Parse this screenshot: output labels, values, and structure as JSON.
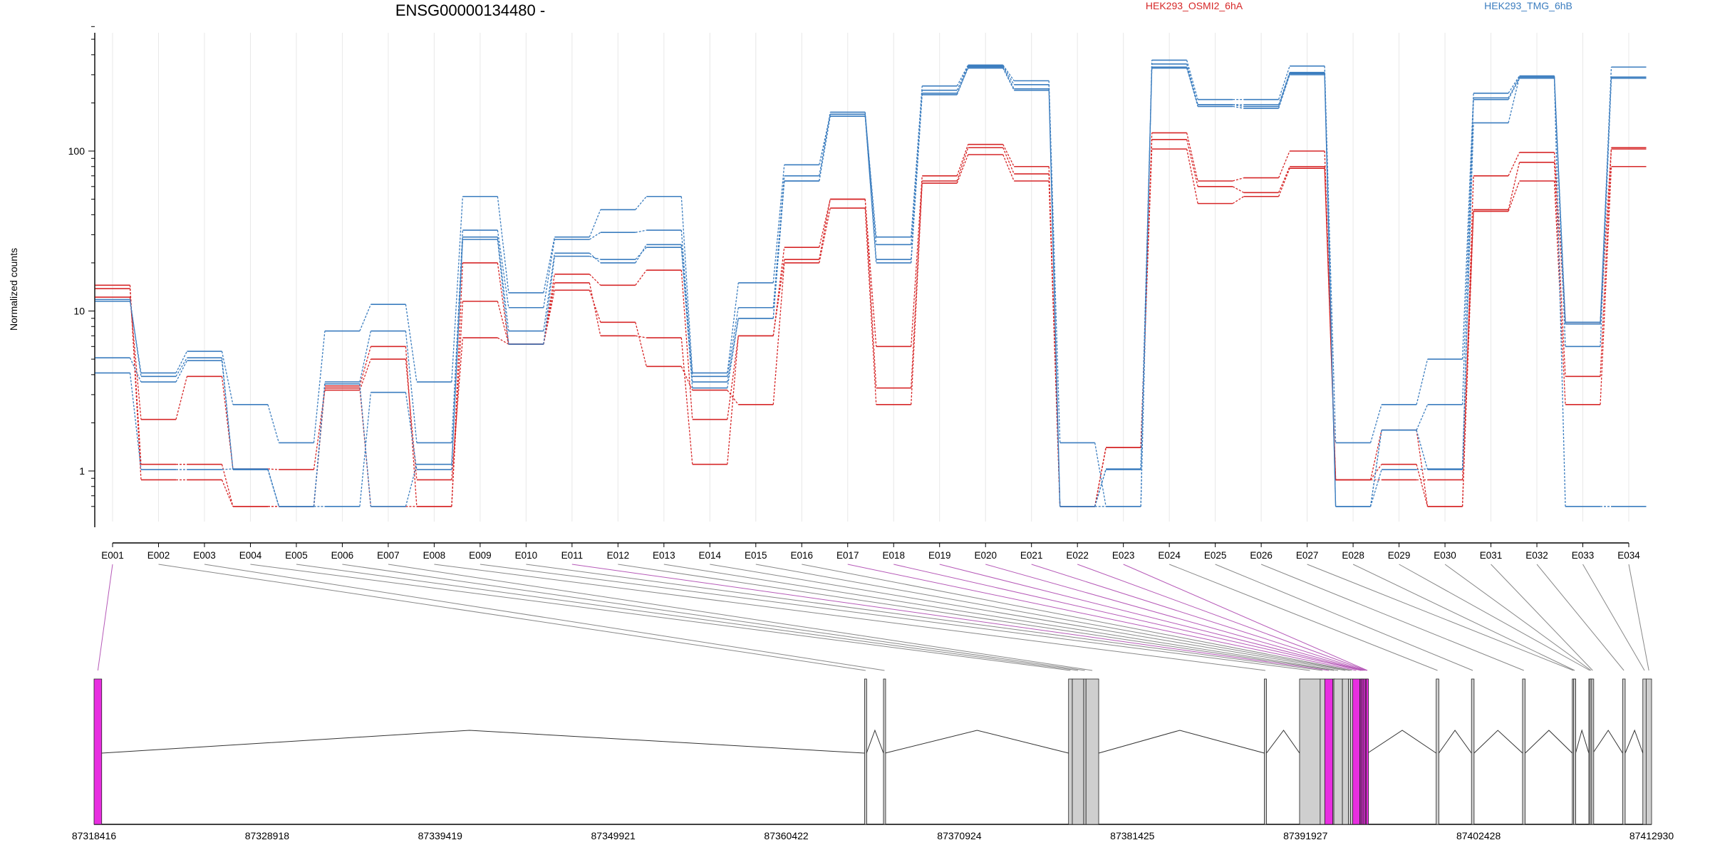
{
  "chart_data": {
    "type": "line",
    "title": "ENSG00000134480 -",
    "ylabel": "Normalized counts",
    "y_scale": "log",
    "y_ticks": [
      "1",
      "10",
      "100"
    ],
    "ylim": [
      0.55,
      600
    ],
    "grid": "vertical",
    "legend": [
      {
        "name": "HEK293_OSMI2_6hA",
        "color": "#d62728"
      },
      {
        "name": "HEK293_TMG_6hB",
        "color": "#3b7dbf"
      }
    ],
    "categories": [
      "E001",
      "E002",
      "E003",
      "E004",
      "E005",
      "E006",
      "E007",
      "E008",
      "E009",
      "E010",
      "E011",
      "E012",
      "E013",
      "E014",
      "E015",
      "E016",
      "E017",
      "E018",
      "E019",
      "E020",
      "E021",
      "E022",
      "E023",
      "E024",
      "E025",
      "E026",
      "E027",
      "E028",
      "E029",
      "E030",
      "E031",
      "E032",
      "E033",
      "E034"
    ],
    "series": [
      {
        "group": "HEK293_OSMI2_6hA",
        "color": "#d62728",
        "values": [
          14.5,
          0.88,
          0.88,
          0.6,
          0.6,
          3.3,
          0.6,
          0.6,
          20,
          6.2,
          17,
          14.5,
          18,
          2.1,
          7,
          25,
          50,
          6,
          70,
          110,
          80,
          0.6,
          1.4,
          130,
          65,
          68,
          100,
          0.88,
          1.1,
          0.6,
          70,
          98,
          8.5,
          105
        ]
      },
      {
        "group": "HEK293_OSMI2_6hA",
        "color": "#d62728",
        "values": [
          13.8,
          1.1,
          1.1,
          0.6,
          0.6,
          3.4,
          6,
          0.6,
          11.5,
          6.2,
          15,
          7,
          6.8,
          1.1,
          7,
          21,
          50,
          3.3,
          65,
          105,
          72,
          0.6,
          1.4,
          118,
          60,
          55,
          80,
          0.88,
          0.88,
          0.88,
          43,
          85,
          3.9,
          103
        ]
      },
      {
        "group": "HEK293_OSMI2_6hA",
        "color": "#d62728",
        "values": [
          12.2,
          2.1,
          3.9,
          1.03,
          1.02,
          3.2,
          5,
          0.88,
          6.8,
          6.2,
          13.5,
          8.5,
          4.5,
          3.2,
          2.6,
          20,
          44,
          2.6,
          63,
          95,
          65,
          0.6,
          1.4,
          103,
          47,
          52,
          78,
          0.88,
          1.8,
          0.6,
          42,
          65,
          2.6,
          80
        ]
      },
      {
        "group": "HEK293_TMG_6hB",
        "color": "#3b7dbf",
        "values": [
          11.5,
          4.1,
          5.6,
          2.6,
          1.5,
          7.5,
          11,
          3.6,
          52,
          13,
          29,
          43,
          52,
          4.1,
          15,
          82,
          170,
          29,
          255,
          345,
          275,
          1.5,
          0.6,
          370,
          210,
          210,
          340,
          1.5,
          2.6,
          5,
          230,
          295,
          8.3,
          335
        ]
      },
      {
        "group": "HEK293_TMG_6hB",
        "color": "#3b7dbf",
        "values": [
          11.8,
          3.9,
          5.1,
          1.02,
          0.6,
          3.6,
          7.5,
          1.5,
          32,
          10.5,
          28,
          31,
          32,
          3.9,
          10.5,
          70,
          175,
          26,
          240,
          340,
          260,
          0.6,
          0.6,
          350,
          195,
          195,
          310,
          0.6,
          1.8,
          2.6,
          215,
          290,
          6,
          290
        ]
      },
      {
        "group": "HEK293_TMG_6hB",
        "color": "#3b7dbf",
        "values": [
          5.1,
          3.6,
          4.9,
          1.02,
          0.6,
          0.6,
          3.1,
          1.02,
          29,
          7.5,
          23,
          20,
          26,
          3.6,
          9,
          65,
          165,
          21,
          230,
          330,
          240,
          0.6,
          1.02,
          335,
          190,
          185,
          300,
          0.6,
          1.02,
          1.03,
          150,
          290,
          0.6,
          0.6
        ]
      },
      {
        "group": "HEK293_TMG_6hB",
        "color": "#3b7dbf",
        "values": [
          4.1,
          1.02,
          1.02,
          1.03,
          0.6,
          3.5,
          0.6,
          1.1,
          28,
          6.2,
          22,
          21,
          25,
          3.3,
          9,
          65,
          170,
          20,
          225,
          335,
          245,
          0.6,
          1.03,
          330,
          195,
          190,
          305,
          0.6,
          1.8,
          1.02,
          210,
          285,
          8.5,
          285
        ]
      }
    ],
    "gene_model": {
      "coordinate_labels": [
        "87318416",
        "87328918",
        "87339419",
        "87349921",
        "87360422",
        "87370924",
        "87381425",
        "87391927",
        "87402428",
        "87412930"
      ],
      "genomic_range": [
        87318416,
        87412930
      ],
      "exons": [
        {
          "id": "E001",
          "start": 87318416,
          "end": 87318880,
          "highlight": true
        },
        {
          "id": "E002",
          "start": 87365170,
          "end": 87365290,
          "highlight": false
        },
        {
          "id": "E003",
          "start": 87366320,
          "end": 87366420,
          "highlight": false
        },
        {
          "id": "E004",
          "start": 87377550,
          "end": 87377780,
          "highlight": false
        },
        {
          "id": "E005",
          "start": 87377780,
          "end": 87378470,
          "highlight": false
        },
        {
          "id": "E006",
          "start": 87378470,
          "end": 87378610,
          "highlight": false
        },
        {
          "id": "E007",
          "start": 87378610,
          "end": 87379380,
          "highlight": false
        },
        {
          "id": "E008",
          "start": 87389430,
          "end": 87389560,
          "highlight": false
        },
        {
          "id": "E009",
          "start": 87391570,
          "end": 87392820,
          "highlight": false
        },
        {
          "id": "E010",
          "start": 87392820,
          "end": 87393100,
          "highlight": false
        },
        {
          "id": "E011",
          "start": 87393100,
          "end": 87393590,
          "highlight": true
        },
        {
          "id": "E012",
          "start": 87393590,
          "end": 87393650,
          "highlight": false
        },
        {
          "id": "E013",
          "start": 87393650,
          "end": 87394170,
          "highlight": false
        },
        {
          "id": "E014",
          "start": 87394170,
          "end": 87394530,
          "highlight": false
        },
        {
          "id": "E015",
          "start": 87394530,
          "end": 87394670,
          "highlight": false
        },
        {
          "id": "E016",
          "start": 87394670,
          "end": 87394790,
          "highlight": false
        },
        {
          "id": "E017",
          "start": 87394790,
          "end": 87395230,
          "highlight": true
        },
        {
          "id": "E018",
          "start": 87395230,
          "end": 87395290,
          "highlight": true
        },
        {
          "id": "E019",
          "start": 87395290,
          "end": 87395370,
          "highlight": true
        },
        {
          "id": "E020",
          "start": 87395370,
          "end": 87395460,
          "highlight": true
        },
        {
          "id": "E021",
          "start": 87395460,
          "end": 87395560,
          "highlight": true
        },
        {
          "id": "E022",
          "start": 87395560,
          "end": 87395620,
          "highlight": true
        },
        {
          "id": "E023",
          "start": 87395620,
          "end": 87395700,
          "highlight": true
        },
        {
          "id": "E024",
          "start": 87399860,
          "end": 87400020,
          "highlight": false
        },
        {
          "id": "E025",
          "start": 87402000,
          "end": 87402160,
          "highlight": false
        },
        {
          "id": "E026",
          "start": 87405100,
          "end": 87405260,
          "highlight": false
        },
        {
          "id": "E027",
          "start": 87408120,
          "end": 87408200,
          "highlight": false
        },
        {
          "id": "E028",
          "start": 87408200,
          "end": 87408320,
          "highlight": false
        },
        {
          "id": "E029",
          "start": 87409120,
          "end": 87409190,
          "highlight": false
        },
        {
          "id": "E030",
          "start": 87409190,
          "end": 87409290,
          "highlight": false
        },
        {
          "id": "E031",
          "start": 87409290,
          "end": 87409370,
          "highlight": false
        },
        {
          "id": "E032",
          "start": 87411170,
          "end": 87411330,
          "highlight": false
        },
        {
          "id": "E033",
          "start": 87412400,
          "end": 87412600,
          "highlight": false
        },
        {
          "id": "E034",
          "start": 87412600,
          "end": 87412930,
          "highlight": false
        }
      ],
      "introns": [
        {
          "from": 87318880,
          "to": 87365170,
          "peak": 87341200
        },
        {
          "from": 87365290,
          "to": 87366320,
          "peak": 87365800
        },
        {
          "from": 87366420,
          "to": 87377550,
          "peak": 87372000
        },
        {
          "from": 87379380,
          "to": 87389430,
          "peak": 87384300
        },
        {
          "from": 87389560,
          "to": 87391570,
          "peak": 87390600
        },
        {
          "from": 87395700,
          "to": 87399860,
          "peak": 87397800
        },
        {
          "from": 87400020,
          "to": 87402000,
          "peak": 87401000
        },
        {
          "from": 87402160,
          "to": 87405100,
          "peak": 87403600
        },
        {
          "from": 87405260,
          "to": 87408120,
          "peak": 87406700
        },
        {
          "from": 87408320,
          "to": 87409120,
          "peak": 87408700
        },
        {
          "from": 87409370,
          "to": 87411170,
          "peak": 87410300
        },
        {
          "from": 87411330,
          "to": 87412400,
          "peak": 87411900
        }
      ]
    }
  }
}
